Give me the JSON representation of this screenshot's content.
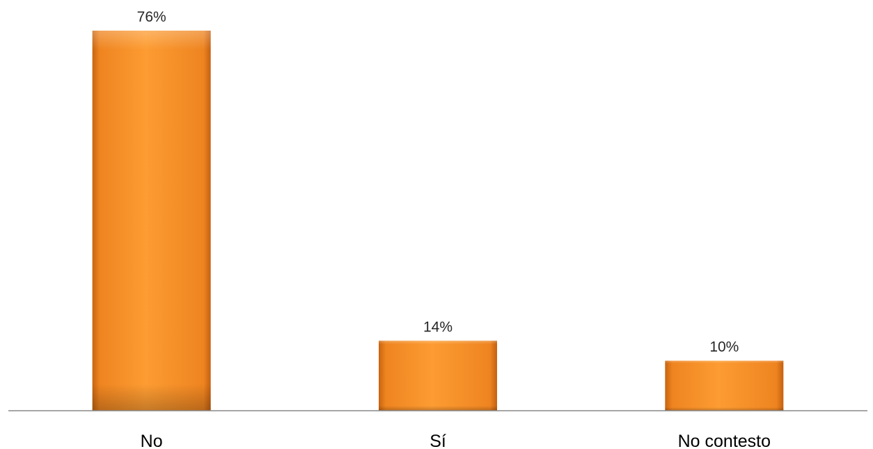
{
  "chart_data": {
    "type": "bar",
    "title": "",
    "xlabel": "",
    "ylabel": "",
    "categories": [
      "No",
      "Sí",
      "No contesto"
    ],
    "values": [
      76,
      14,
      10
    ],
    "value_labels": [
      "76%",
      "14%",
      "10%"
    ],
    "ylim": [
      0,
      76
    ],
    "grid": false,
    "legend": "none",
    "bar_color": "#F7941D",
    "axis_color": "#888888"
  }
}
